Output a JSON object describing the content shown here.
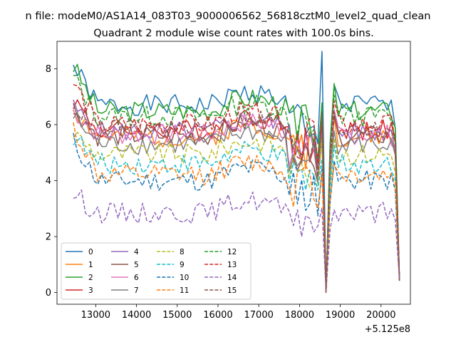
{
  "chart_data": {
    "type": "line",
    "suptitle": "n file: modeM0/AS1A14_083T03_9000006562_56818cztM0_level2_quad_clean",
    "title": "Quadrant 2 module wise count rates with 100.0s bins.",
    "xlabel": "",
    "ylabel": "",
    "x_offset_label": "+5.125e8",
    "xlim": [
      12050,
      20720
    ],
    "ylim": [
      -0.42,
      8.98
    ],
    "xticks": [
      13000,
      14000,
      15000,
      16000,
      17000,
      18000,
      19000,
      20000
    ],
    "yticks": [
      0,
      2,
      4,
      6,
      8
    ],
    "x": {
      "start": 12450,
      "step": 100,
      "count": 81
    },
    "series": [
      {
        "name": "0",
        "color": "#1f77b4",
        "dash": "solid",
        "level": 6.7,
        "start": 8.1,
        "seed": 1
      },
      {
        "name": "1",
        "color": "#ff7f0e",
        "dash": "solid",
        "level": 5.55,
        "start": 6.6,
        "seed": 2
      },
      {
        "name": "2",
        "color": "#2ca02c",
        "dash": "solid",
        "level": 6.5,
        "start": 8.1,
        "seed": 3
      },
      {
        "name": "3",
        "color": "#d62728",
        "dash": "solid",
        "level": 5.8,
        "start": 6.9,
        "seed": 4
      },
      {
        "name": "4",
        "color": "#9467bd",
        "dash": "solid",
        "level": 5.75,
        "start": 6.6,
        "seed": 5
      },
      {
        "name": "5",
        "color": "#8c564b",
        "dash": "solid",
        "level": 5.6,
        "start": 6.6,
        "seed": 6
      },
      {
        "name": "6",
        "color": "#e377c2",
        "dash": "solid",
        "level": 5.65,
        "start": 6.5,
        "seed": 7
      },
      {
        "name": "7",
        "color": "#7f7f7f",
        "dash": "solid",
        "level": 5.3,
        "start": 6.3,
        "seed": 8
      },
      {
        "name": "8",
        "color": "#bcbd22",
        "dash": "dashed",
        "level": 4.95,
        "start": 5.7,
        "seed": 9
      },
      {
        "name": "9",
        "color": "#17becf",
        "dash": "dashed",
        "level": 4.6,
        "start": 5.6,
        "seed": 10
      },
      {
        "name": "10",
        "color": "#1f77b4",
        "dash": "dashed",
        "level": 4.0,
        "start": 5.4,
        "seed": 11
      },
      {
        "name": "11",
        "color": "#ff7f0e",
        "dash": "dashed",
        "level": 4.2,
        "start": 5.9,
        "seed": 12
      },
      {
        "name": "12",
        "color": "#2ca02c",
        "dash": "dashed",
        "level": 6.3,
        "start": 7.7,
        "seed": 13
      },
      {
        "name": "13",
        "color": "#d62728",
        "dash": "dashed",
        "level": 6.0,
        "start": 7.5,
        "seed": 14
      },
      {
        "name": "14",
        "color": "#9467bd",
        "dash": "dashed",
        "level": 2.85,
        "start": 3.55,
        "seed": 15
      },
      {
        "name": "15",
        "color": "#8c564b",
        "dash": "dashed",
        "level": 5.85,
        "start": 6.7,
        "seed": 16
      }
    ],
    "features": {
      "dip_x": 18650,
      "dip_value": 0.0,
      "spike_x": 18550,
      "spike_value": 8.55,
      "end_x": 20450,
      "end_value": 0.4
    },
    "legend": {
      "loc": "lower left",
      "ncol": 4
    }
  }
}
